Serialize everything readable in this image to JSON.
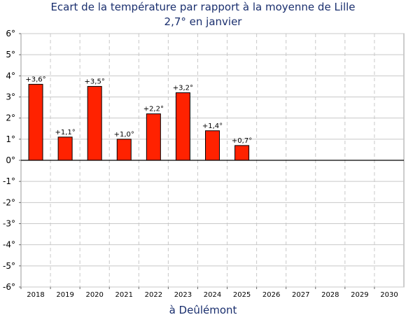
{
  "chart_data": {
    "type": "bar",
    "title": "Ecart de la température par rapport à la moyenne de Lille",
    "subtitle": "2,7° en janvier",
    "xlabel": "à Deûlémont",
    "ylabel": "",
    "categories": [
      "2018",
      "2019",
      "2020",
      "2021",
      "2022",
      "2023",
      "2024",
      "2025",
      "2026",
      "2027",
      "2028",
      "2029",
      "2030"
    ],
    "values": [
      3.6,
      1.1,
      3.5,
      1.0,
      2.2,
      3.2,
      1.4,
      0.7,
      null,
      null,
      null,
      null,
      null
    ],
    "data_labels": [
      "+3,6°",
      "+1,1°",
      "+3,5°",
      "+1,0°",
      "+2,2°",
      "+3,2°",
      "+1,4°",
      "+0,7°",
      "",
      "",
      "",
      "",
      ""
    ],
    "ylim": [
      -6,
      6
    ],
    "yticks": [
      6,
      5,
      4,
      3,
      2,
      1,
      0,
      -1,
      -2,
      -3,
      -4,
      -5,
      -6
    ],
    "ytick_labels": [
      "6°",
      "5°",
      "4°",
      "3°",
      "2°",
      "1°",
      "0°",
      "-1°",
      "-2°",
      "-3°",
      "-4°",
      "-5°",
      "-6°"
    ],
    "grid": true,
    "legend": "none",
    "colors": {
      "bar": "#ff2200",
      "bar_edge": "#000000",
      "title": "#1a2f6e",
      "grid": "#c8c8c8"
    }
  }
}
